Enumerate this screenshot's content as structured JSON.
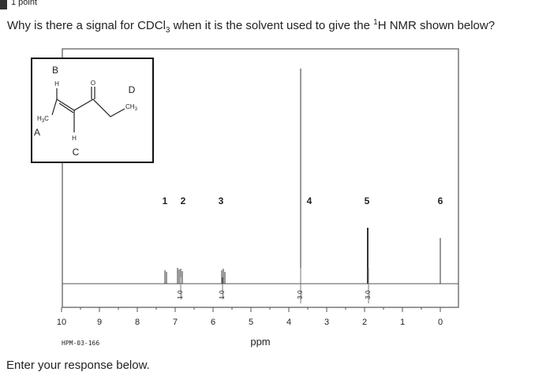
{
  "header": {
    "points": "1 point"
  },
  "question": {
    "parts": [
      "Why is there a signal for CDCl",
      "3",
      " when it is the solvent used to give the ",
      "1",
      "H NMR shown below?"
    ]
  },
  "figure": {
    "molecule": {
      "label_b": "B",
      "h_top": "H",
      "o_carbonyl": "O",
      "label_d": "D",
      "ch3_right": [
        "CH",
        "3"
      ],
      "ch3_left": [
        "H",
        "3",
        "C"
      ],
      "label_a": "A",
      "h_bottom": "H",
      "label_c": "C"
    },
    "peak_labels": [
      "1",
      "2",
      "3",
      "4",
      "5",
      "6"
    ],
    "integrations": [
      "1.0",
      "1.0",
      "3.0",
      "3.0"
    ],
    "axis_ticks": [
      "10",
      "9",
      "8",
      "7",
      "6",
      "5",
      "4",
      "3",
      "2",
      "1",
      "0"
    ],
    "sample_id": "HPM-03-166",
    "axis_label": "ppm"
  },
  "prompt": "Enter your response below."
}
